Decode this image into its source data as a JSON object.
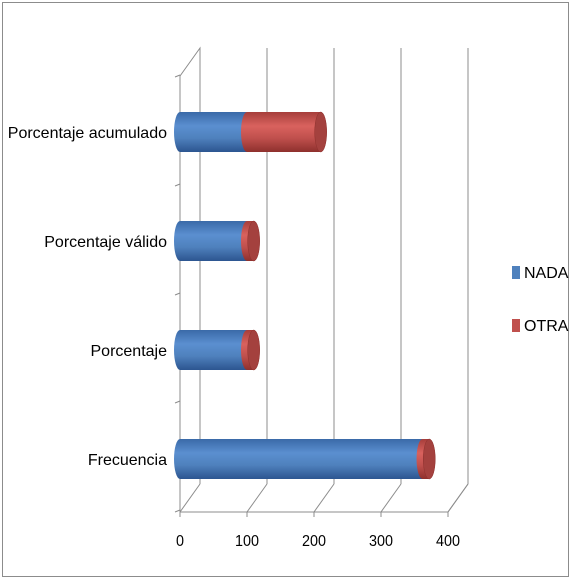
{
  "chart_data": {
    "type": "bar",
    "orientation": "horizontal",
    "stacked": true,
    "style": "3d-cylinder",
    "categories": [
      "Frecuencia",
      "Porcentaje",
      "Porcentaje válido",
      "Porcentaje acumulado"
    ],
    "series": [
      {
        "name": "NADA",
        "values": [
          362,
          100,
          100,
          100
        ],
        "color": "#4f81bd"
      },
      {
        "name": "OTRA",
        "values": [
          10,
          10,
          10,
          110
        ],
        "color": "#c0504d"
      }
    ],
    "x_ticks": [
      "0",
      "100",
      "200",
      "300",
      "400"
    ],
    "xlim": [
      0,
      400
    ],
    "grid": true,
    "legend_position": "right",
    "title": "",
    "xlabel": "",
    "ylabel": ""
  }
}
